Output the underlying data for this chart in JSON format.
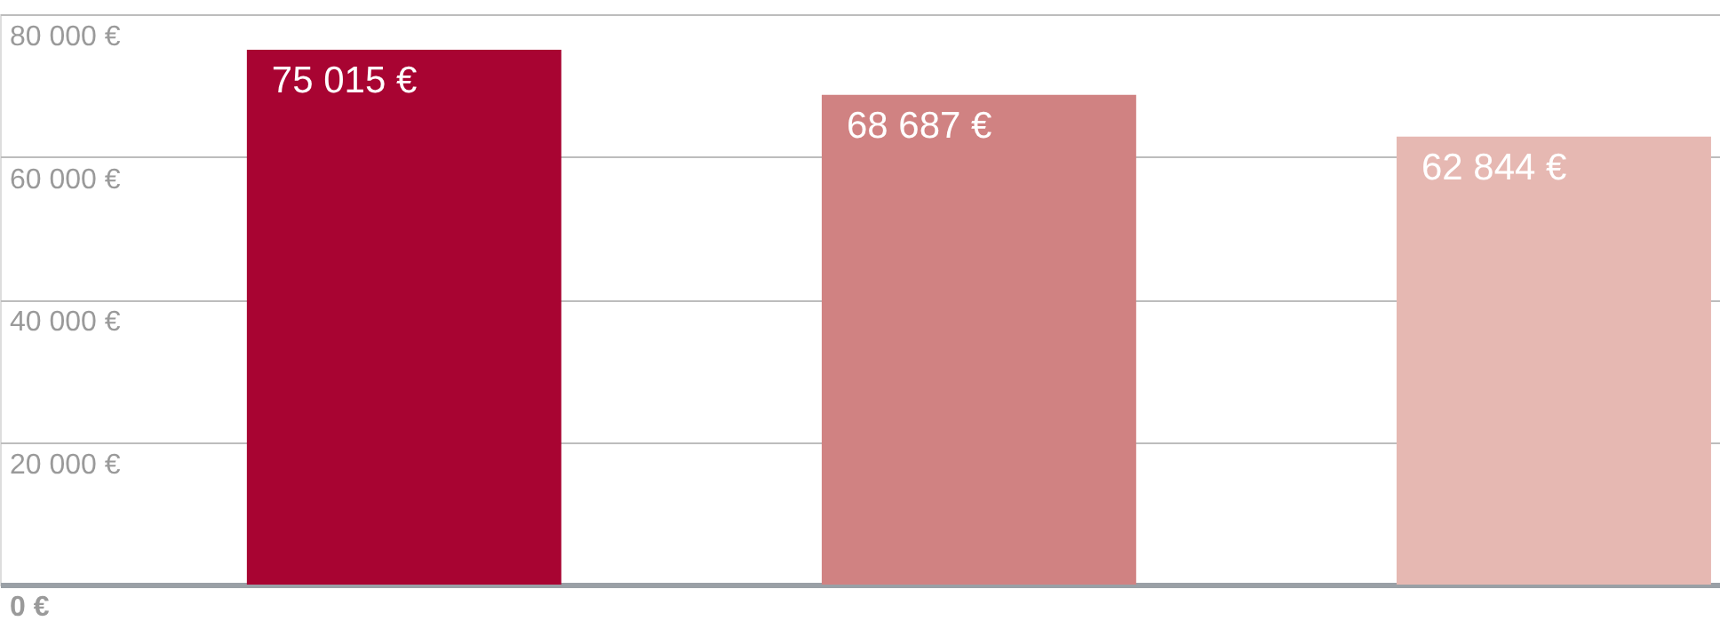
{
  "chart_data": {
    "type": "bar",
    "categories": [
      null,
      null,
      null
    ],
    "values": [
      75015,
      68687,
      62844
    ],
    "colors": [
      "#a80432",
      "#d08282",
      "#e6b8b2"
    ],
    "value_labels": [
      "75 015 €",
      "68 687 €",
      "62 844 €"
    ],
    "ylim": [
      0,
      80000
    ],
    "yticks": [
      {
        "value": 0,
        "label": "0 €"
      },
      {
        "value": 20000,
        "label": "20 000 €"
      },
      {
        "value": 40000,
        "label": "40 000 €"
      },
      {
        "value": 60000,
        "label": "60 000 €"
      },
      {
        "value": 80000,
        "label": "80 000 €"
      }
    ],
    "grid": "y",
    "tick_labels": "y"
  }
}
